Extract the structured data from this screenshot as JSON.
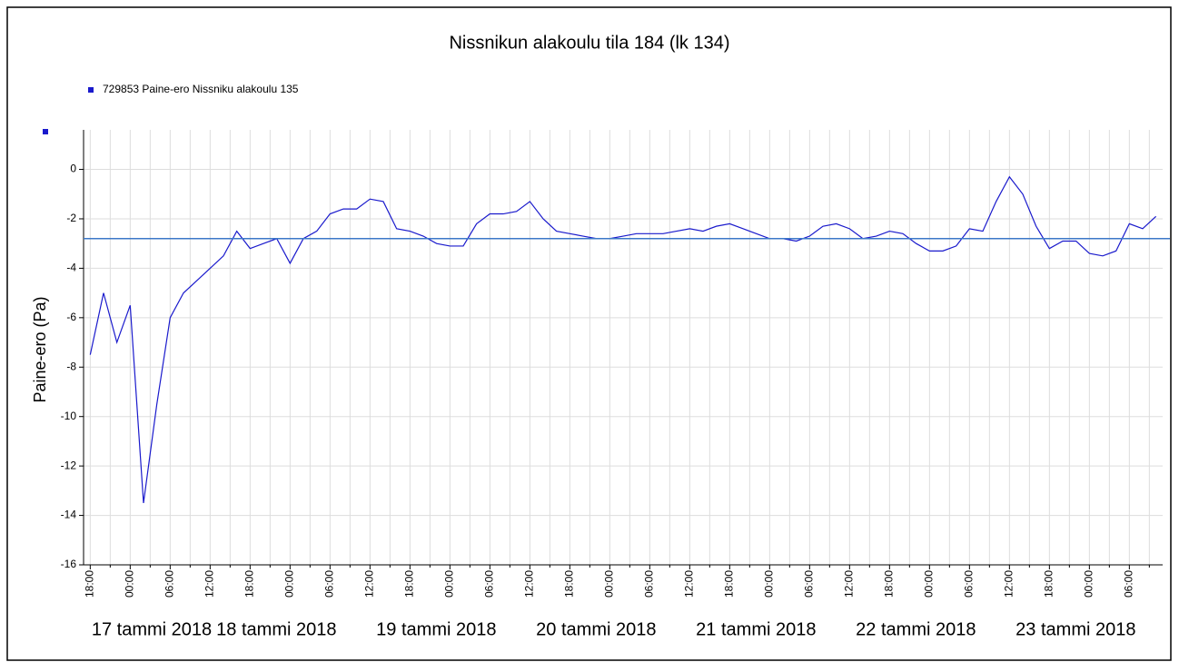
{
  "chart_data": {
    "type": "line",
    "title": "Nissnikun alakoulu tila 184 (lk 134)",
    "y_label": "Paine-ero (Pa)",
    "date_labels": [
      "17 tammi 2018",
      "18 tammi 2018",
      "19 tammi 2018",
      "20 tammi 2018",
      "21 tammi 2018",
      "22 tammi 2018",
      "23 tammi 2018"
    ],
    "xlim": [
      "2018-01-16T17:00",
      "2018-01-23T11:00"
    ],
    "ylim": [
      -16,
      1.6
    ],
    "yticks": [
      -16,
      -14,
      -12,
      -10,
      -8,
      -6,
      -4,
      -2,
      0
    ],
    "grid": true,
    "reference_line": -2.8,
    "reference_color": "#3c78c8",
    "xticks": [
      {
        "value": "2018-01-16T18:00",
        "label": "18:00"
      },
      {
        "value": "2018-01-17T00:00",
        "label": "00:00"
      },
      {
        "value": "2018-01-17T06:00",
        "label": "06:00"
      },
      {
        "value": "2018-01-17T12:00",
        "label": "12:00"
      },
      {
        "value": "2018-01-17T18:00",
        "label": "18:00"
      },
      {
        "value": "2018-01-18T00:00",
        "label": "00:00"
      },
      {
        "value": "2018-01-18T06:00",
        "label": "06:00"
      },
      {
        "value": "2018-01-18T12:00",
        "label": "12:00"
      },
      {
        "value": "2018-01-18T18:00",
        "label": "18:00"
      },
      {
        "value": "2018-01-19T00:00",
        "label": "00:00"
      },
      {
        "value": "2018-01-19T06:00",
        "label": "06:00"
      },
      {
        "value": "2018-01-19T12:00",
        "label": "12:00"
      },
      {
        "value": "2018-01-19T18:00",
        "label": "18:00"
      },
      {
        "value": "2018-01-20T00:00",
        "label": "00:00"
      },
      {
        "value": "2018-01-20T06:00",
        "label": "06:00"
      },
      {
        "value": "2018-01-20T12:00",
        "label": "12:00"
      },
      {
        "value": "2018-01-20T18:00",
        "label": "18:00"
      },
      {
        "value": "2018-01-21T00:00",
        "label": "00:00"
      },
      {
        "value": "2018-01-21T06:00",
        "label": "06:00"
      },
      {
        "value": "2018-01-21T12:00",
        "label": "12:00"
      },
      {
        "value": "2018-01-21T18:00",
        "label": "18:00"
      },
      {
        "value": "2018-01-22T00:00",
        "label": "00:00"
      },
      {
        "value": "2018-01-22T06:00",
        "label": "06:00"
      },
      {
        "value": "2018-01-22T12:00",
        "label": "12:00"
      },
      {
        "value": "2018-01-22T18:00",
        "label": "18:00"
      },
      {
        "value": "2018-01-23T00:00",
        "label": "00:00"
      },
      {
        "value": "2018-01-23T06:00",
        "label": "06:00"
      }
    ],
    "x": [
      "2018-01-16T18:00",
      "2018-01-16T20:00",
      "2018-01-16T22:00",
      "2018-01-17T00:00",
      "2018-01-17T02:00",
      "2018-01-17T04:00",
      "2018-01-17T06:00",
      "2018-01-17T08:00",
      "2018-01-17T10:00",
      "2018-01-17T12:00",
      "2018-01-17T14:00",
      "2018-01-17T16:00",
      "2018-01-17T18:00",
      "2018-01-17T20:00",
      "2018-01-17T22:00",
      "2018-01-18T00:00",
      "2018-01-18T02:00",
      "2018-01-18T04:00",
      "2018-01-18T06:00",
      "2018-01-18T08:00",
      "2018-01-18T10:00",
      "2018-01-18T12:00",
      "2018-01-18T14:00",
      "2018-01-18T16:00",
      "2018-01-18T18:00",
      "2018-01-18T20:00",
      "2018-01-18T22:00",
      "2018-01-19T00:00",
      "2018-01-19T02:00",
      "2018-01-19T04:00",
      "2018-01-19T06:00",
      "2018-01-19T08:00",
      "2018-01-19T10:00",
      "2018-01-19T12:00",
      "2018-01-19T14:00",
      "2018-01-19T16:00",
      "2018-01-19T18:00",
      "2018-01-19T20:00",
      "2018-01-19T22:00",
      "2018-01-20T00:00",
      "2018-01-20T02:00",
      "2018-01-20T04:00",
      "2018-01-20T06:00",
      "2018-01-20T08:00",
      "2018-01-20T10:00",
      "2018-01-20T12:00",
      "2018-01-20T14:00",
      "2018-01-20T16:00",
      "2018-01-20T18:00",
      "2018-01-20T20:00",
      "2018-01-20T22:00",
      "2018-01-21T00:00",
      "2018-01-21T02:00",
      "2018-01-21T04:00",
      "2018-01-21T06:00",
      "2018-01-21T08:00",
      "2018-01-21T10:00",
      "2018-01-21T12:00",
      "2018-01-21T14:00",
      "2018-01-21T16:00",
      "2018-01-21T18:00",
      "2018-01-21T20:00",
      "2018-01-21T22:00",
      "2018-01-22T00:00",
      "2018-01-22T02:00",
      "2018-01-22T04:00",
      "2018-01-22T06:00",
      "2018-01-22T08:00",
      "2018-01-22T10:00",
      "2018-01-22T12:00",
      "2018-01-22T14:00",
      "2018-01-22T16:00",
      "2018-01-22T18:00",
      "2018-01-22T20:00",
      "2018-01-22T22:00",
      "2018-01-23T00:00",
      "2018-01-23T02:00",
      "2018-01-23T04:00",
      "2018-01-23T06:00",
      "2018-01-23T08:00",
      "2018-01-23T10:00"
    ],
    "series": [
      {
        "name": "729853  Paine-ero Nissniku alakoulu 135",
        "color": "#1a1acc",
        "values": [
          -7.5,
          -5,
          -7,
          -5.5,
          -13.5,
          -9.5,
          -6,
          -5,
          -4.5,
          -4,
          -3.5,
          -2.5,
          -3.2,
          -3,
          -2.8,
          -3.8,
          -2.8,
          -2.5,
          -1.8,
          -1.6,
          -1.6,
          -1.2,
          -1.3,
          -2.4,
          -2.5,
          -2.7,
          -3,
          -3.1,
          -3.1,
          -2.2,
          -1.8,
          -1.8,
          -1.7,
          -1.3,
          -2,
          -2.5,
          -2.6,
          -2.7,
          -2.8,
          -2.8,
          -2.7,
          -2.6,
          -2.6,
          -2.6,
          -2.5,
          -2.4,
          -2.5,
          -2.3,
          -2.2,
          -2.4,
          -2.6,
          -2.8,
          -2.8,
          -2.9,
          -2.7,
          -2.3,
          -2.2,
          -2.4,
          -2.8,
          -2.7,
          -2.5,
          -2.6,
          -3,
          -3.3,
          -3.3,
          -3.1,
          -2.4,
          -2.5,
          -1.3,
          -0.3,
          -1,
          -2.3,
          -3.2,
          -2.9,
          -2.9,
          -3.4,
          -3.5,
          -3.3,
          -2.2,
          -2.4,
          -1.9
        ]
      }
    ]
  }
}
